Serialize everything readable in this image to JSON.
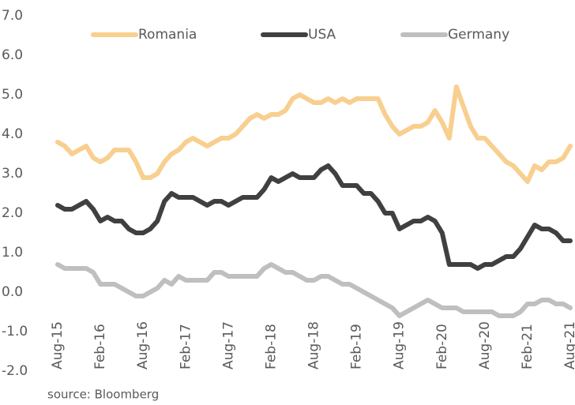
{
  "chart_data": {
    "type": "line",
    "categories": [
      "Aug-15",
      null,
      null,
      null,
      null,
      null,
      "Feb-16",
      null,
      null,
      null,
      null,
      null,
      "Aug-16",
      null,
      null,
      null,
      null,
      null,
      "Feb-17",
      null,
      null,
      null,
      null,
      null,
      "Aug-17",
      null,
      null,
      null,
      null,
      null,
      "Feb-18",
      null,
      null,
      null,
      null,
      null,
      "Aug-18",
      null,
      null,
      null,
      null,
      null,
      "Feb-19",
      null,
      null,
      null,
      null,
      null,
      "Aug-19",
      null,
      null,
      null,
      null,
      null,
      "Feb-20",
      null,
      null,
      null,
      null,
      null,
      "Aug-20",
      null,
      null,
      null,
      null,
      null,
      "Feb-21",
      null,
      null,
      null,
      null,
      null,
      "Aug-21"
    ],
    "series": [
      {
        "name": "Romania",
        "color": "#f8cf8f",
        "values": [
          3.8,
          3.7,
          3.5,
          3.6,
          3.7,
          3.4,
          3.3,
          3.4,
          3.6,
          3.6,
          3.6,
          3.3,
          2.9,
          2.9,
          3.0,
          3.3,
          3.5,
          3.6,
          3.8,
          3.9,
          3.8,
          3.7,
          3.8,
          3.9,
          3.9,
          4.0,
          4.2,
          4.4,
          4.5,
          4.4,
          4.5,
          4.5,
          4.6,
          4.9,
          5.0,
          4.9,
          4.8,
          4.8,
          4.9,
          4.8,
          4.9,
          4.8,
          4.9,
          4.9,
          4.9,
          4.9,
          4.5,
          4.2,
          4.0,
          4.1,
          4.2,
          4.2,
          4.3,
          4.6,
          4.3,
          3.9,
          5.2,
          4.7,
          4.2,
          3.9,
          3.9,
          3.7,
          3.5,
          3.3,
          3.2,
          3.0,
          2.8,
          3.2,
          3.1,
          3.3,
          3.3,
          3.4,
          3.7
        ]
      },
      {
        "name": "USA",
        "color": "#404040",
        "values": [
          2.2,
          2.1,
          2.1,
          2.2,
          2.3,
          2.1,
          1.8,
          1.9,
          1.8,
          1.8,
          1.6,
          1.5,
          1.5,
          1.6,
          1.8,
          2.3,
          2.5,
          2.4,
          2.4,
          2.4,
          2.3,
          2.2,
          2.3,
          2.3,
          2.2,
          2.3,
          2.4,
          2.4,
          2.4,
          2.6,
          2.9,
          2.8,
          2.9,
          3.0,
          2.9,
          2.9,
          2.9,
          3.1,
          3.2,
          3.0,
          2.7,
          2.7,
          2.7,
          2.5,
          2.5,
          2.3,
          2.0,
          2.0,
          1.6,
          1.7,
          1.8,
          1.8,
          1.9,
          1.8,
          1.5,
          0.7,
          0.7,
          0.7,
          0.7,
          0.6,
          0.7,
          0.7,
          0.8,
          0.9,
          0.9,
          1.1,
          1.4,
          1.7,
          1.6,
          1.6,
          1.5,
          1.3,
          1.3
        ]
      },
      {
        "name": "Germany",
        "color": "#bfbfbf",
        "values": [
          0.7,
          0.6,
          0.6,
          0.6,
          0.6,
          0.5,
          0.2,
          0.2,
          0.2,
          0.1,
          0.0,
          -0.1,
          -0.1,
          0.0,
          0.1,
          0.3,
          0.2,
          0.4,
          0.3,
          0.3,
          0.3,
          0.3,
          0.5,
          0.5,
          0.4,
          0.4,
          0.4,
          0.4,
          0.4,
          0.6,
          0.7,
          0.6,
          0.5,
          0.5,
          0.4,
          0.3,
          0.3,
          0.4,
          0.4,
          0.3,
          0.2,
          0.2,
          0.1,
          0.0,
          -0.1,
          -0.2,
          -0.3,
          -0.4,
          -0.6,
          -0.5,
          -0.4,
          -0.3,
          -0.2,
          -0.3,
          -0.4,
          -0.4,
          -0.4,
          -0.5,
          -0.5,
          -0.5,
          -0.5,
          -0.5,
          -0.6,
          -0.6,
          -0.6,
          -0.5,
          -0.3,
          -0.3,
          -0.2,
          -0.2,
          -0.3,
          -0.3,
          -0.4
        ]
      }
    ],
    "ylim": [
      -2,
      7
    ],
    "yticks": [
      {
        "value": -2,
        "label": "-2.0"
      },
      {
        "value": -1,
        "label": "-1.0"
      },
      {
        "value": 0,
        "label": "0.0"
      },
      {
        "value": 1,
        "label": "1.0"
      },
      {
        "value": 2,
        "label": "2.0"
      },
      {
        "value": 3,
        "label": "3.0"
      },
      {
        "value": 4,
        "label": "4.0"
      },
      {
        "value": 5,
        "label": "5.0"
      },
      {
        "value": 6,
        "label": "6.0"
      },
      {
        "value": 7,
        "label": "7.0"
      }
    ],
    "grid": false,
    "legend": "top",
    "source": "source: Bloomberg"
  }
}
